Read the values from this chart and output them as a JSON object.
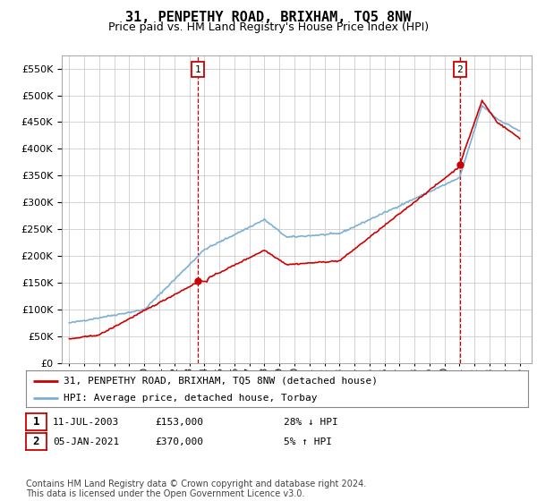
{
  "title": "31, PENPETHY ROAD, BRIXHAM, TQ5 8NW",
  "subtitle": "Price paid vs. HM Land Registry's House Price Index (HPI)",
  "ylim": [
    0,
    575000
  ],
  "yticks": [
    0,
    50000,
    100000,
    150000,
    200000,
    250000,
    300000,
    350000,
    400000,
    450000,
    500000,
    550000
  ],
  "x_start_year": 1995,
  "x_end_year": 2025,
  "sale1_x": 2003.54,
  "sale1_price": 153000,
  "sale1_date": "11-JUL-2003",
  "sale1_hpi_diff": "28% ↓ HPI",
  "sale2_x": 2021.02,
  "sale2_price": 370000,
  "sale2_date": "05-JAN-2021",
  "sale2_hpi_diff": "5% ↑ HPI",
  "legend1": "31, PENPETHY ROAD, BRIXHAM, TQ5 8NW (detached house)",
  "legend2": "HPI: Average price, detached house, Torbay",
  "footer": "Contains HM Land Registry data © Crown copyright and database right 2024.\nThis data is licensed under the Open Government Licence v3.0.",
  "hpi_color": "#7bafd4",
  "price_color": "#cc0000",
  "vline_color": "#cc0000",
  "background_color": "#ffffff",
  "grid_color": "#cccccc",
  "title_fontsize": 11,
  "subtitle_fontsize": 9,
  "tick_fontsize": 8,
  "legend_fontsize": 8,
  "footer_fontsize": 7
}
